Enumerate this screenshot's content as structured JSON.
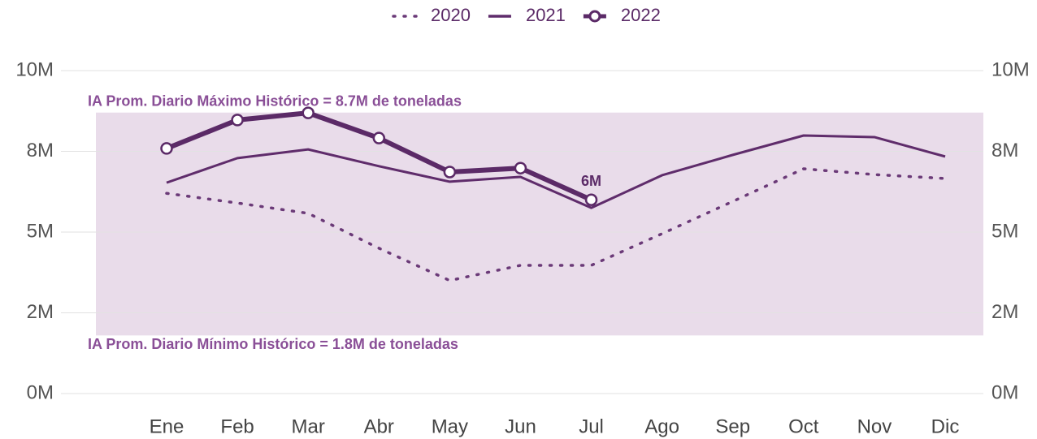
{
  "chart_data": {
    "type": "line",
    "categories": [
      "Ene",
      "Feb",
      "Mar",
      "Abr",
      "May",
      "Jun",
      "Jul",
      "Ago",
      "Sep",
      "Oct",
      "Nov",
      "Dic"
    ],
    "series": [
      {
        "name": "2020",
        "color": "#6b3a78",
        "style": "dotted",
        "width": 3.5,
        "values": [
          6.2,
          5.9,
          5.58,
          4.5,
          3.5,
          3.97,
          3.97,
          4.95,
          5.95,
          6.96,
          6.78,
          6.66
        ]
      },
      {
        "name": "2021",
        "color": "#5f2c6b",
        "style": "solid",
        "width": 3,
        "values": [
          6.53,
          7.29,
          7.56,
          7.04,
          6.56,
          6.71,
          5.75,
          6.76,
          7.39,
          7.99,
          7.94,
          7.34
        ]
      },
      {
        "name": "2022",
        "color": "#5b2a67",
        "style": "markers",
        "width": 6,
        "values": [
          7.59,
          8.47,
          8.69,
          7.91,
          6.86,
          6.98,
          6.0,
          null,
          null,
          null,
          null,
          null
        ],
        "value_labels": [
          null,
          null,
          null,
          null,
          null,
          null,
          "6M",
          null,
          null,
          null,
          null,
          null
        ]
      }
    ],
    "ylim": [
      0,
      10
    ],
    "yticks": [
      {
        "value": 0,
        "label": "0M"
      },
      {
        "value": 2.5,
        "label": "2M"
      },
      {
        "value": 5,
        "label": "5M"
      },
      {
        "value": 7.5,
        "label": "8M"
      },
      {
        "value": 10,
        "label": "10M"
      }
    ],
    "grid": true,
    "legend": "top",
    "band": {
      "from": 1.8,
      "to": 8.7,
      "color": "#e9dcea"
    },
    "annotations": [
      {
        "text": "IA Prom. Diario Máximo Histórico = 8.7M de toneladas",
        "y": 8.7
      },
      {
        "text": "IA Prom. Diario Mínimo Histórico = 1.8M de toneladas",
        "y": 1.8
      }
    ]
  }
}
